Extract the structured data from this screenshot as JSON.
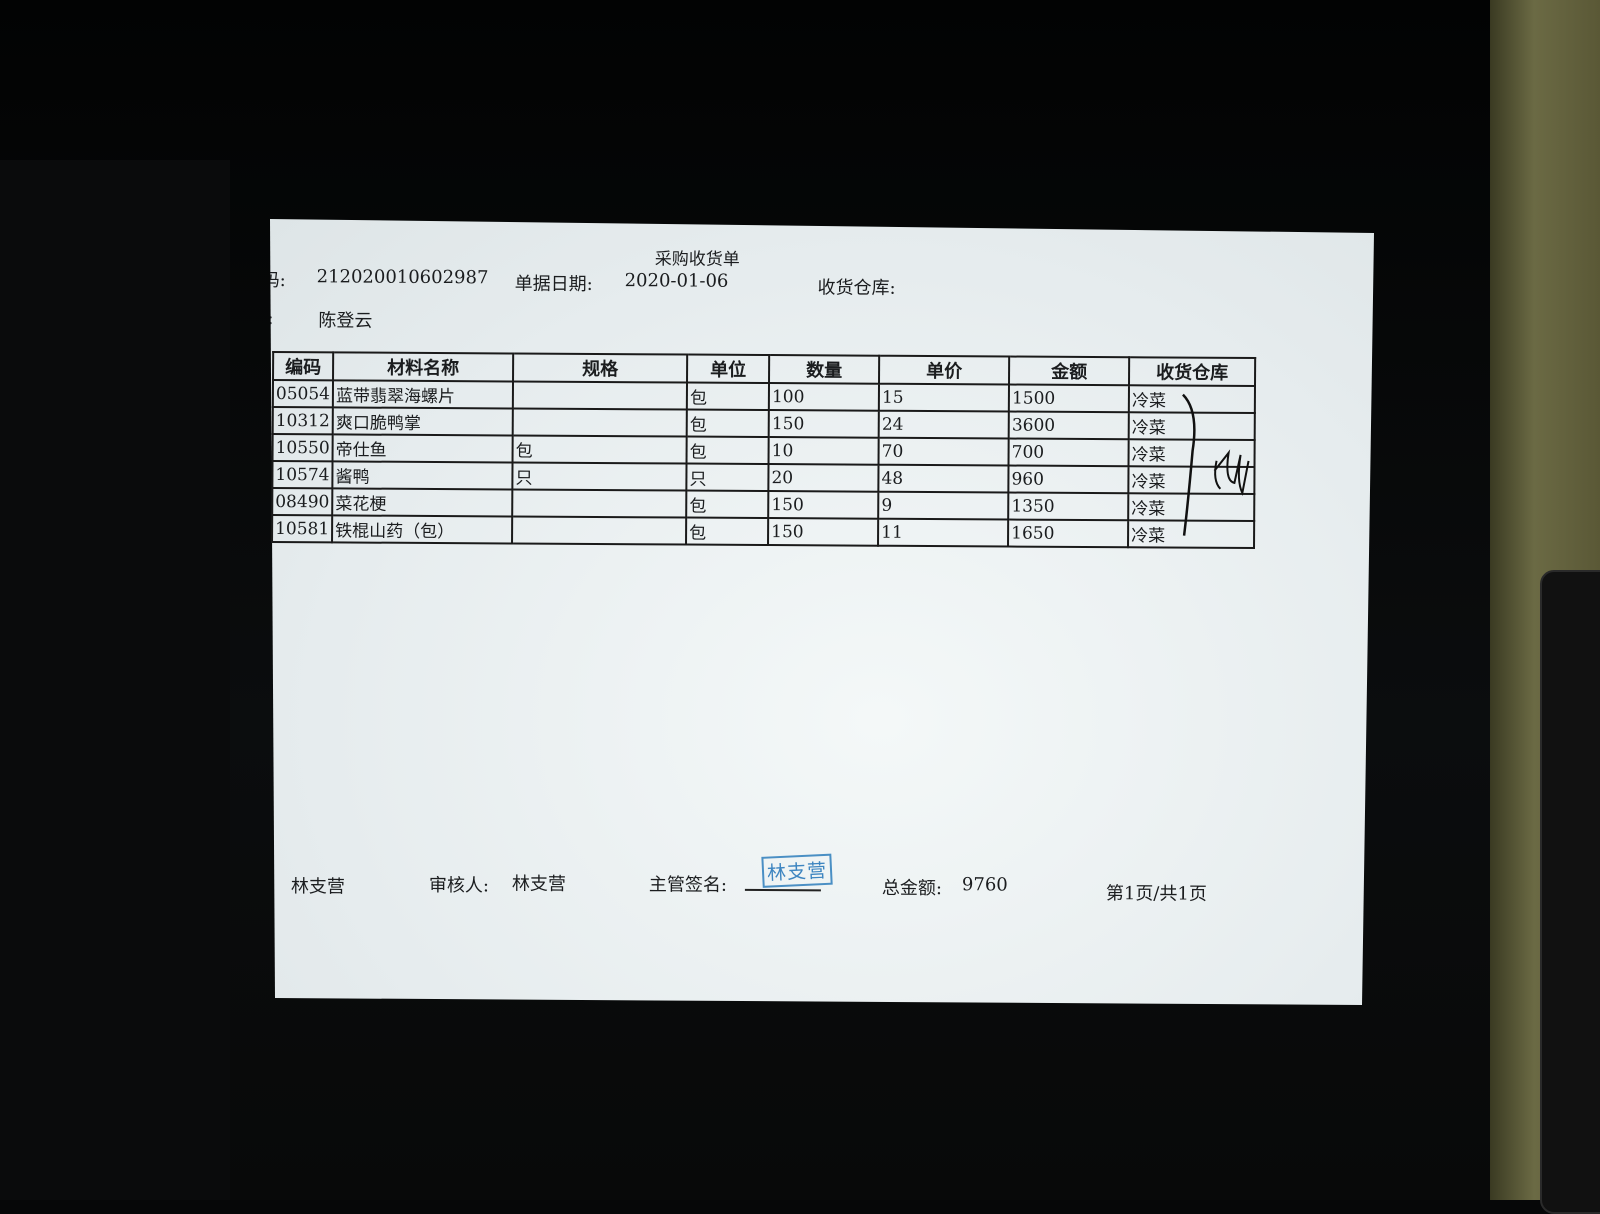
{
  "document": {
    "title": "采购收货单",
    "doc_no_label": "码:",
    "doc_no": "212020010602987",
    "date_label": "单据日期:",
    "date": "2020-01-06",
    "warehouse_label": "收货仓库:",
    "person_label": ":",
    "person": "陈登云"
  },
  "table": {
    "headers": [
      "编码",
      "材料名称",
      "规格",
      "单位",
      "数量",
      "单价",
      "金额",
      "收货仓库"
    ],
    "rows": [
      [
        "05054",
        "蓝带翡翠海螺片",
        "",
        "包",
        "100",
        "15",
        "1500",
        "冷菜"
      ],
      [
        "10312",
        "爽口脆鸭掌",
        "",
        "包",
        "150",
        "24",
        "3600",
        "冷菜"
      ],
      [
        "10550",
        "帝仕鱼",
        "包",
        "包",
        "10",
        "70",
        "700",
        "冷菜"
      ],
      [
        "10574",
        "酱鸭",
        "只",
        "只",
        "20",
        "48",
        "960",
        "冷菜"
      ],
      [
        "08490",
        "菜花梗",
        "",
        "包",
        "150",
        "9",
        "1350",
        "冷菜"
      ],
      [
        "10581",
        "铁棍山药（包）",
        "",
        "包",
        "150",
        "11",
        "1650",
        "冷菜"
      ]
    ]
  },
  "footer": {
    "maker_label": ":",
    "maker": "林支营",
    "reviewer_label": "审核人:",
    "reviewer": "林支营",
    "supervisor_label": "主管签名:",
    "stamp_text": "林支营",
    "total_label": "总金额:",
    "total": "9760",
    "page": "第1页/共1页"
  },
  "colors": {
    "stamp": "#3d85c0",
    "paper": "#e8eef0",
    "background": "#060708"
  }
}
